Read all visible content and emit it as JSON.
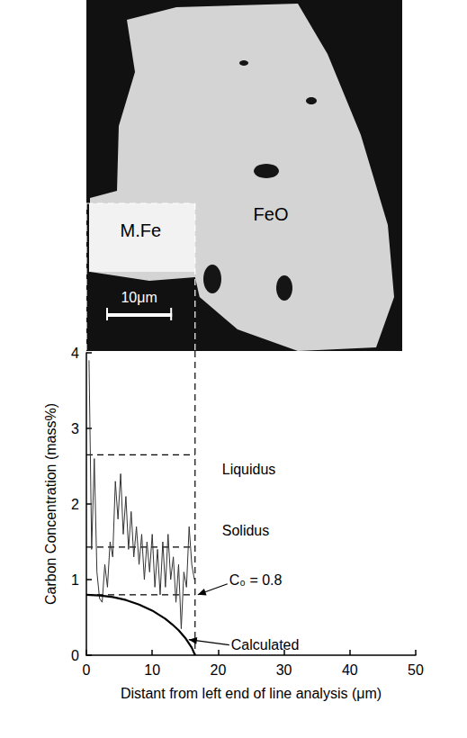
{
  "image": {
    "labels": {
      "metal": "M.Fe",
      "oxide": "FeO"
    },
    "scale_bar": {
      "label": "10μm",
      "length": 10
    }
  },
  "chart_data": {
    "type": "line",
    "xlabel": "Distant from left end of line analysis (μm)",
    "ylabel": "Carbon Concentration (mass%)",
    "xlim": [
      0,
      50
    ],
    "xticks": [
      0,
      10,
      20,
      30,
      40,
      50
    ],
    "ylim": [
      0,
      4
    ],
    "yticks": [
      0,
      1,
      2,
      3,
      4
    ],
    "grid": false,
    "interface_x": 16.5,
    "reference_lines": [
      {
        "label": "Liquidus",
        "value": 2.65
      },
      {
        "label": "Solidus",
        "value": 1.43
      },
      {
        "label": "C₀ = 0.8",
        "value": 0.8
      }
    ],
    "series": [
      {
        "color": "#333333",
        "line_style": "solid",
        "x": [
          0.4,
          0.8,
          1.2,
          1.6,
          2.0,
          2.4,
          2.8,
          3.2,
          3.6,
          4.0,
          4.4,
          4.8,
          5.2,
          5.6,
          6.0,
          6.4,
          6.8,
          7.2,
          7.6,
          8.0,
          8.4,
          8.8,
          9.2,
          9.6,
          10.0,
          10.4,
          10.8,
          11.2,
          11.6,
          12.0,
          12.4,
          12.8,
          13.2,
          13.6,
          14.0,
          14.4,
          14.8,
          15.2,
          15.6,
          16.0,
          16.4
        ],
        "values": [
          3.9,
          1.4,
          2.6,
          1.1,
          0.75,
          0.7,
          1.2,
          0.9,
          1.5,
          1.3,
          2.3,
          1.8,
          2.4,
          1.6,
          2.1,
          1.4,
          1.9,
          1.3,
          1.7,
          1.2,
          1.6,
          1.0,
          1.5,
          1.1,
          1.6,
          0.9,
          1.4,
          0.8,
          1.5,
          0.9,
          1.6,
          1.0,
          1.3,
          0.7,
          1.2,
          0.35,
          1.1,
          0.9,
          1.7,
          1.2,
          1.0
        ]
      },
      {
        "name": "Calculated",
        "color": "#000000",
        "line_style": "solid",
        "x": [
          0,
          2,
          4,
          6,
          8,
          10,
          12,
          13,
          14,
          15,
          16,
          16.5
        ],
        "values": [
          0.8,
          0.79,
          0.77,
          0.73,
          0.67,
          0.59,
          0.48,
          0.41,
          0.33,
          0.23,
          0.1,
          0
        ]
      }
    ]
  }
}
